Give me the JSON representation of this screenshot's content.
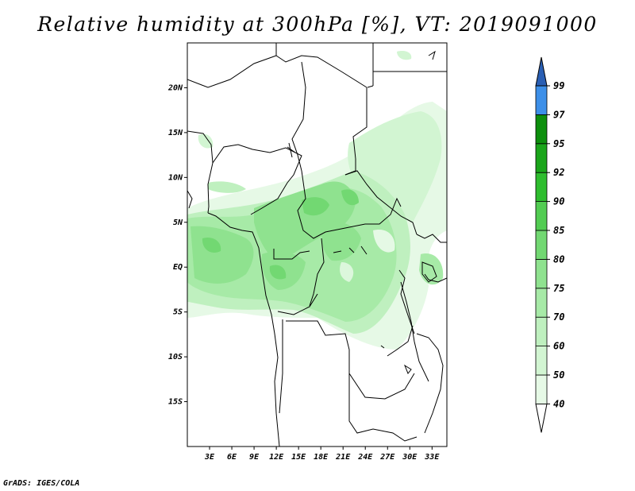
{
  "title": "Relative humidity at 300hPa [%], VT: 2019091000",
  "credit": "GrADS: IGES/COLA",
  "map": {
    "lon_range": [
      0,
      35
    ],
    "lat_range": [
      -20,
      25
    ],
    "lat_labels": [
      "20N",
      "15N",
      "10N",
      "5N",
      "EQ",
      "5S",
      "10S",
      "15S"
    ],
    "lat_values": [
      20,
      15,
      10,
      5,
      0,
      -5,
      -10,
      -15
    ],
    "lon_labels": [
      "3E",
      "6E",
      "9E",
      "12E",
      "15E",
      "18E",
      "21E",
      "24E",
      "27E",
      "30E",
      "33E"
    ],
    "lon_values": [
      3,
      6,
      9,
      12,
      15,
      18,
      21,
      24,
      27,
      30,
      33
    ]
  },
  "colorbar": {
    "levels": [
      "40",
      "50",
      "60",
      "70",
      "75",
      "80",
      "85",
      "90",
      "92",
      "95",
      "97",
      "99"
    ],
    "colors": [
      "#e6f9e6",
      "#d2f5d2",
      "#bff0bf",
      "#a7eaa7",
      "#8fe28f",
      "#72d872",
      "#52cc52",
      "#2ebd2e",
      "#1aa51a",
      "#0d8f0d",
      "#3d8fe8",
      "#2a6fd6",
      "#2a5fb4"
    ],
    "min_color": "#ffffff"
  }
}
